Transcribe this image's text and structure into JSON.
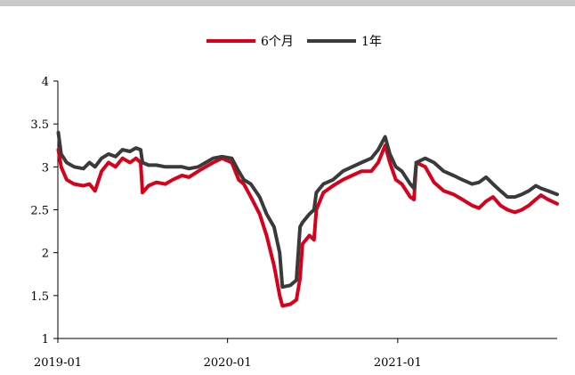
{
  "chart_data": {
    "type": "line",
    "title": "",
    "xlabel": "",
    "ylabel": "",
    "x_range": [
      "2019-01-01",
      "2021-12-10"
    ],
    "ylim": [
      1,
      4
    ],
    "y_ticks": [
      1,
      1.5,
      2,
      2.5,
      3,
      3.5,
      4
    ],
    "y_tick_labels": [
      "1",
      "1.5",
      "2",
      "2.5",
      "3",
      "3.5",
      "4"
    ],
    "x_ticks": [
      "2019-01-01",
      "2020-01-01",
      "2021-01-01"
    ],
    "x_tick_labels": [
      "2019-01",
      "2020-01",
      "2021-01"
    ],
    "grid": false,
    "legend_position": "top-center",
    "series": [
      {
        "name": "6个月",
        "color": "#d9001b",
        "points": [
          [
            "2019-01-02",
            3.2
          ],
          [
            "2019-01-08",
            3.0
          ],
          [
            "2019-01-20",
            2.85
          ],
          [
            "2019-02-05",
            2.8
          ],
          [
            "2019-02-25",
            2.78
          ],
          [
            "2019-03-10",
            2.8
          ],
          [
            "2019-03-22",
            2.72
          ],
          [
            "2019-04-05",
            2.95
          ],
          [
            "2019-04-20",
            3.05
          ],
          [
            "2019-05-05",
            3.0
          ],
          [
            "2019-05-20",
            3.1
          ],
          [
            "2019-06-05",
            3.05
          ],
          [
            "2019-06-18",
            3.1
          ],
          [
            "2019-06-28",
            3.05
          ],
          [
            "2019-07-02",
            2.7
          ],
          [
            "2019-07-15",
            2.78
          ],
          [
            "2019-08-01",
            2.82
          ],
          [
            "2019-08-20",
            2.8
          ],
          [
            "2019-09-05",
            2.85
          ],
          [
            "2019-09-25",
            2.9
          ],
          [
            "2019-10-10",
            2.88
          ],
          [
            "2019-10-30",
            2.95
          ],
          [
            "2019-11-15",
            3.0
          ],
          [
            "2019-12-01",
            3.05
          ],
          [
            "2019-12-20",
            3.1
          ],
          [
            "2020-01-10",
            3.05
          ],
          [
            "2020-01-25",
            2.85
          ],
          [
            "2020-02-05",
            2.8
          ],
          [
            "2020-02-20",
            2.65
          ],
          [
            "2020-03-10",
            2.45
          ],
          [
            "2020-03-25",
            2.2
          ],
          [
            "2020-04-10",
            1.85
          ],
          [
            "2020-04-22",
            1.5
          ],
          [
            "2020-04-28",
            1.38
          ],
          [
            "2020-05-15",
            1.4
          ],
          [
            "2020-05-28",
            1.45
          ],
          [
            "2020-06-05",
            1.7
          ],
          [
            "2020-06-10",
            2.1
          ],
          [
            "2020-06-25",
            2.2
          ],
          [
            "2020-07-05",
            2.15
          ],
          [
            "2020-07-10",
            2.5
          ],
          [
            "2020-07-25",
            2.7
          ],
          [
            "2020-08-15",
            2.78
          ],
          [
            "2020-09-05",
            2.85
          ],
          [
            "2020-09-25",
            2.9
          ],
          [
            "2020-10-15",
            2.95
          ],
          [
            "2020-11-05",
            2.95
          ],
          [
            "2020-11-20",
            3.05
          ],
          [
            "2020-12-05",
            3.25
          ],
          [
            "2020-12-15",
            3.05
          ],
          [
            "2020-12-28",
            2.85
          ],
          [
            "2021-01-10",
            2.8
          ],
          [
            "2021-01-28",
            2.65
          ],
          [
            "2021-02-05",
            2.62
          ],
          [
            "2021-02-10",
            3.05
          ],
          [
            "2021-03-01",
            3.0
          ],
          [
            "2021-03-20",
            2.82
          ],
          [
            "2021-04-10",
            2.72
          ],
          [
            "2021-05-01",
            2.68
          ],
          [
            "2021-05-20",
            2.62
          ],
          [
            "2021-06-10",
            2.55
          ],
          [
            "2021-06-25",
            2.52
          ],
          [
            "2021-07-10",
            2.6
          ],
          [
            "2021-07-25",
            2.65
          ],
          [
            "2021-08-10",
            2.55
          ],
          [
            "2021-08-25",
            2.5
          ],
          [
            "2021-09-10",
            2.47
          ],
          [
            "2021-09-25",
            2.5
          ],
          [
            "2021-10-10",
            2.55
          ],
          [
            "2021-10-25",
            2.62
          ],
          [
            "2021-11-05",
            2.67
          ],
          [
            "2021-11-20",
            2.62
          ],
          [
            "2021-12-10",
            2.57
          ]
        ]
      },
      {
        "name": "1年",
        "color": "#3a3a3a",
        "points": [
          [
            "2019-01-02",
            3.4
          ],
          [
            "2019-01-08",
            3.15
          ],
          [
            "2019-01-20",
            3.05
          ],
          [
            "2019-02-05",
            3.0
          ],
          [
            "2019-02-25",
            2.98
          ],
          [
            "2019-03-10",
            3.05
          ],
          [
            "2019-03-22",
            3.0
          ],
          [
            "2019-04-05",
            3.1
          ],
          [
            "2019-04-20",
            3.15
          ],
          [
            "2019-05-05",
            3.12
          ],
          [
            "2019-05-20",
            3.2
          ],
          [
            "2019-06-05",
            3.18
          ],
          [
            "2019-06-18",
            3.22
          ],
          [
            "2019-06-28",
            3.2
          ],
          [
            "2019-07-02",
            3.05
          ],
          [
            "2019-07-15",
            3.02
          ],
          [
            "2019-08-01",
            3.02
          ],
          [
            "2019-08-20",
            3.0
          ],
          [
            "2019-09-05",
            3.0
          ],
          [
            "2019-09-25",
            3.0
          ],
          [
            "2019-10-10",
            2.98
          ],
          [
            "2019-10-30",
            3.0
          ],
          [
            "2019-11-15",
            3.05
          ],
          [
            "2019-12-01",
            3.1
          ],
          [
            "2019-12-20",
            3.12
          ],
          [
            "2020-01-10",
            3.1
          ],
          [
            "2020-01-25",
            2.95
          ],
          [
            "2020-02-05",
            2.85
          ],
          [
            "2020-02-20",
            2.8
          ],
          [
            "2020-03-10",
            2.65
          ],
          [
            "2020-03-25",
            2.45
          ],
          [
            "2020-04-10",
            2.3
          ],
          [
            "2020-04-22",
            2.0
          ],
          [
            "2020-04-28",
            1.6
          ],
          [
            "2020-05-15",
            1.62
          ],
          [
            "2020-05-28",
            1.68
          ],
          [
            "2020-06-05",
            2.3
          ],
          [
            "2020-06-10",
            2.35
          ],
          [
            "2020-06-25",
            2.45
          ],
          [
            "2020-07-05",
            2.5
          ],
          [
            "2020-07-10",
            2.7
          ],
          [
            "2020-07-25",
            2.8
          ],
          [
            "2020-08-15",
            2.85
          ],
          [
            "2020-09-05",
            2.95
          ],
          [
            "2020-09-25",
            3.0
          ],
          [
            "2020-10-15",
            3.05
          ],
          [
            "2020-11-05",
            3.1
          ],
          [
            "2020-11-20",
            3.2
          ],
          [
            "2020-12-05",
            3.35
          ],
          [
            "2020-12-15",
            3.15
          ],
          [
            "2020-12-28",
            3.0
          ],
          [
            "2021-01-10",
            2.95
          ],
          [
            "2021-01-28",
            2.8
          ],
          [
            "2021-02-05",
            2.75
          ],
          [
            "2021-02-10",
            3.05
          ],
          [
            "2021-03-01",
            3.1
          ],
          [
            "2021-03-20",
            3.05
          ],
          [
            "2021-04-10",
            2.95
          ],
          [
            "2021-05-01",
            2.9
          ],
          [
            "2021-05-20",
            2.85
          ],
          [
            "2021-06-10",
            2.8
          ],
          [
            "2021-06-25",
            2.82
          ],
          [
            "2021-07-10",
            2.88
          ],
          [
            "2021-07-25",
            2.8
          ],
          [
            "2021-08-10",
            2.72
          ],
          [
            "2021-08-25",
            2.65
          ],
          [
            "2021-09-10",
            2.65
          ],
          [
            "2021-09-25",
            2.68
          ],
          [
            "2021-10-10",
            2.72
          ],
          [
            "2021-10-25",
            2.78
          ],
          [
            "2021-11-05",
            2.75
          ],
          [
            "2021-11-20",
            2.72
          ],
          [
            "2021-12-10",
            2.68
          ]
        ]
      }
    ]
  }
}
